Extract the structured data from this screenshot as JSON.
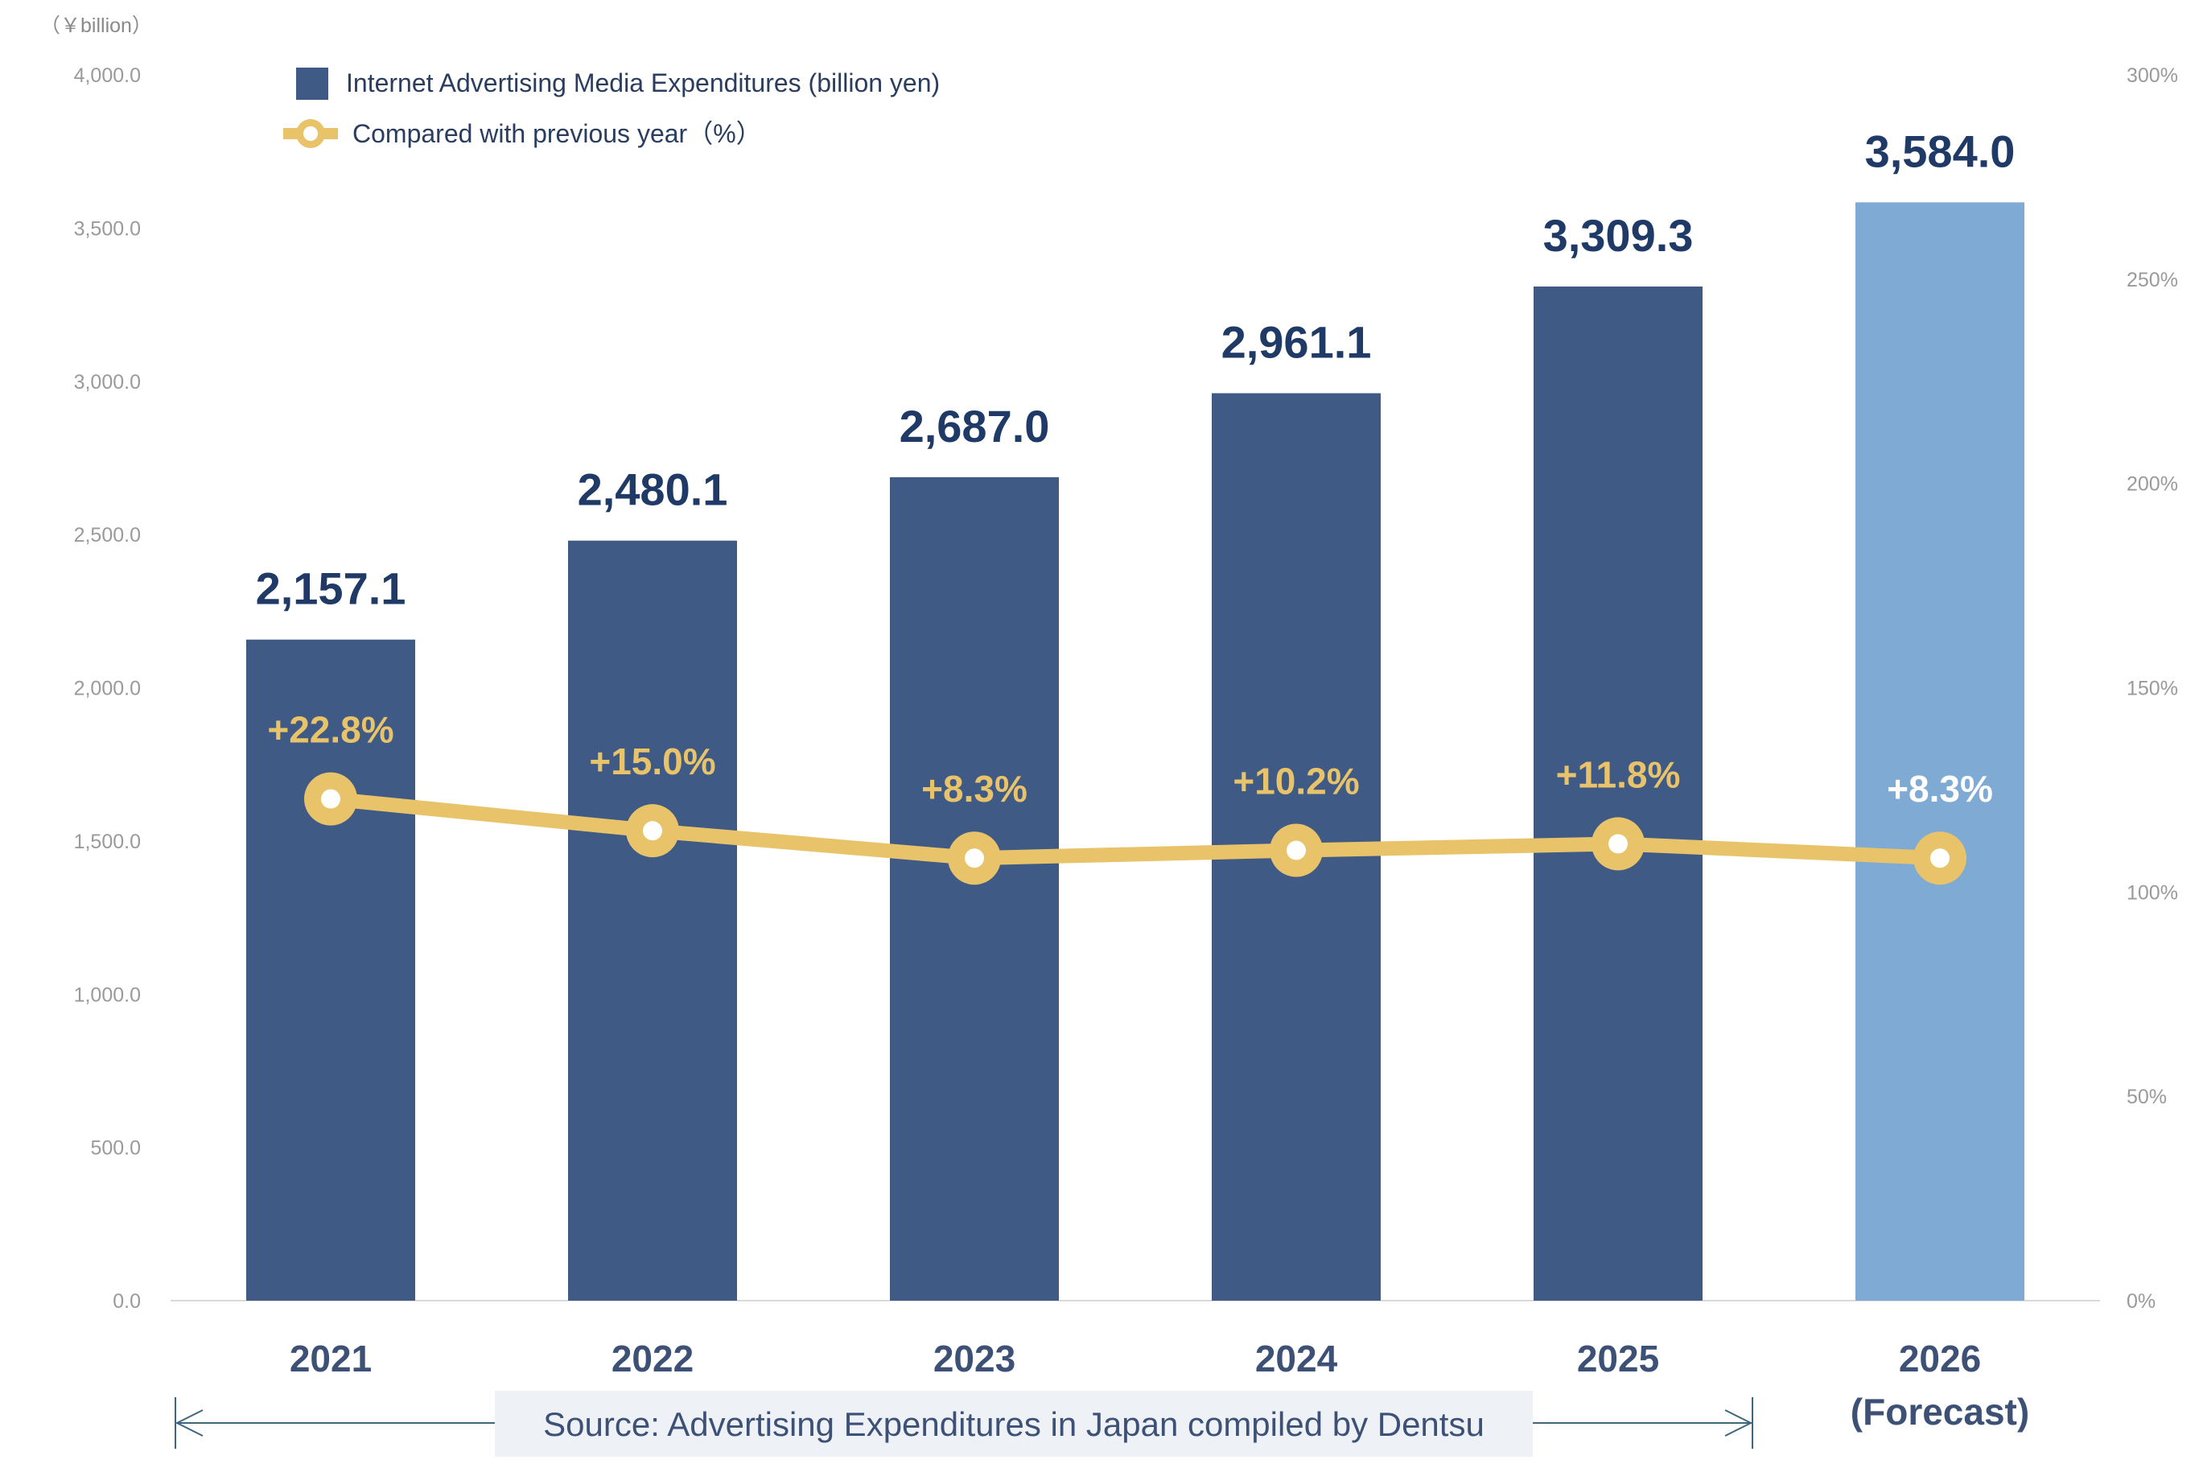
{
  "chart_data": {
    "type": "bar",
    "categories": [
      "2021",
      "2022",
      "2023",
      "2024",
      "2025",
      "2026"
    ],
    "category_sublabels": [
      "",
      "",
      "",
      "",
      "",
      "(Forecast)"
    ],
    "series": [
      {
        "name": "Internet Advertising Media Expenditures (billion yen)",
        "type": "bar",
        "axis": "left",
        "values": [
          2157.1,
          2480.1,
          2687.0,
          2961.1,
          3309.3,
          3584.0
        ],
        "value_labels": [
          "2,157.1",
          "2,480.1",
          "2,687.0",
          "2,961.1",
          "3,309.3",
          "3,584.0"
        ],
        "colors": [
          "#3f5a85",
          "#3f5a85",
          "#3f5a85",
          "#3f5a85",
          "#3f5a85",
          "#7faad3"
        ]
      },
      {
        "name": "Compared with previous year（%）",
        "type": "line",
        "axis": "right",
        "values": [
          122.8,
          115.0,
          108.3,
          110.2,
          111.8,
          108.3
        ],
        "value_labels": [
          "+22.8%",
          "+15.0%",
          "+8.3%",
          "+10.2%",
          "+11.8%",
          "+8.3%"
        ],
        "label_colors": [
          "#e8c36a",
          "#e8c36a",
          "#e8c36a",
          "#e8c36a",
          "#e8c36a",
          "#ffffff"
        ],
        "color": "#e8c36a"
      }
    ],
    "left_axis": {
      "unit_label": "（￥billion）",
      "ylim": [
        0,
        4000
      ],
      "ticks": [
        "0.0",
        "500.0",
        "1,000.0",
        "1,500.0",
        "2,000.0",
        "2,500.0",
        "3,000.0",
        "3,500.0",
        "4,000.0"
      ]
    },
    "right_axis": {
      "ylim": [
        0,
        300
      ],
      "ticks": [
        "0%",
        "50%",
        "100%",
        "150%",
        "200%",
        "250%",
        "300%"
      ]
    },
    "grid": false,
    "legend_position": "top-left",
    "source": "Source: Advertising Expenditures in Japan compiled by Dentsu",
    "source_span": "2021–2025"
  }
}
